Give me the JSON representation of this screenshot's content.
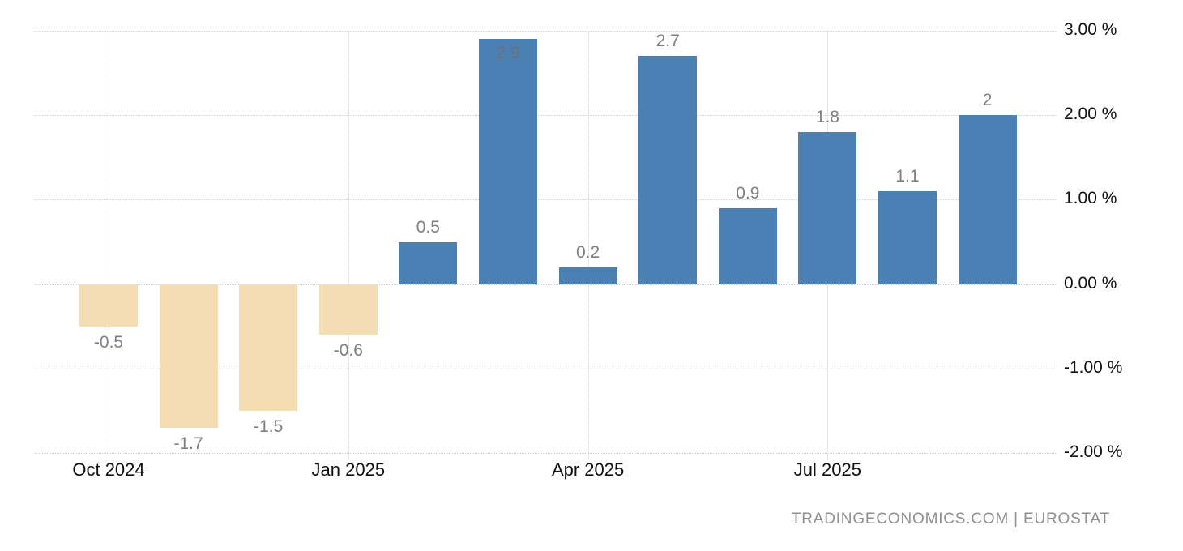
{
  "chart_data": {
    "type": "bar",
    "title": "",
    "xlabel": "",
    "ylabel": "",
    "categories": [
      "Oct 2024",
      "Nov 2024",
      "Dec 2024",
      "Jan 2025",
      "Feb 2025",
      "Mar 2025",
      "Apr 2025",
      "May 2025",
      "Jun 2025",
      "Jul 2025",
      "Aug 2025",
      "Sep 2025"
    ],
    "values": [
      -0.5,
      -1.7,
      -1.5,
      -0.6,
      0.5,
      2.9,
      0.2,
      2.7,
      0.9,
      1.8,
      1.1,
      2
    ],
    "bar_labels": [
      "-0.5",
      "-1.7",
      "-1.5",
      "-0.6",
      "0.5",
      "2.9",
      "0.2",
      "2.7",
      "0.9",
      "1.8",
      "1.1",
      "2"
    ],
    "label_inside_bar": [
      false,
      false,
      false,
      false,
      false,
      true,
      false,
      false,
      false,
      false,
      false,
      false
    ],
    "x_tick_labels": [
      "Oct 2024",
      "Jan 2025",
      "Apr 2025",
      "Jul 2025"
    ],
    "x_tick_month_index": [
      0,
      3,
      6,
      9
    ],
    "y_tick_labels": [
      "3.00 %",
      "2.00 %",
      "1.00 %",
      "0.00 %",
      "-1.00 %",
      "-2.00 %"
    ],
    "y_tick_values": [
      3,
      2,
      1,
      0,
      -1,
      -2
    ],
    "ylim": [
      -2,
      3
    ],
    "grid": "dotted",
    "legend_position": "none",
    "colors": {
      "positive_bar": "#4a80b4",
      "negative_bar": "#f4ddb2",
      "gridline": "#cfcfcf",
      "bar_label": "#7f7f7f",
      "bar_label_inside": "#6d7175",
      "axis_text": "#111111",
      "attribution_text": "#8f8f8f"
    }
  },
  "attribution": {
    "text": "TRADINGECONOMICS.COM | EUROSTAT"
  }
}
